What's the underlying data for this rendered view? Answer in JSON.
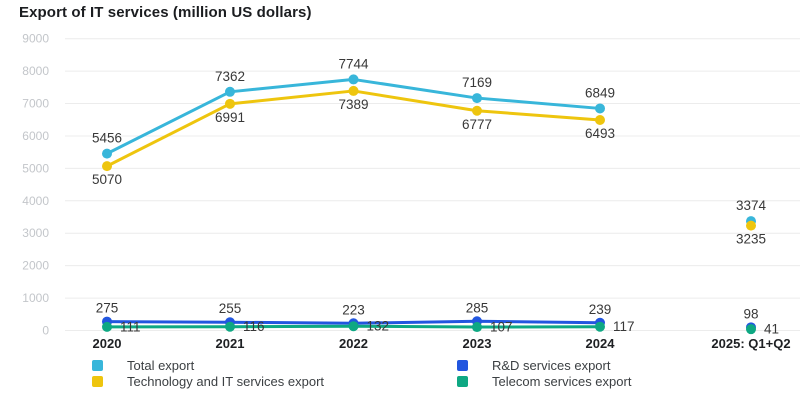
{
  "title": "Export of IT services (million US dollars)",
  "chart_data": {
    "type": "line",
    "title": "Export of IT services (million US dollars)",
    "categories": [
      "2020",
      "2021",
      "2022",
      "2023",
      "2024",
      "2025: Q1+Q2"
    ],
    "series": [
      {
        "name": "Total export",
        "color": "#38b6da",
        "values": [
          5456,
          7362,
          7744,
          7169,
          6849,
          3374
        ],
        "label_position": "above"
      },
      {
        "name": "Technology and IT services export",
        "color": "#eec50e",
        "values": [
          5070,
          6991,
          7389,
          6777,
          6493,
          3235
        ],
        "label_position": "below"
      },
      {
        "name": "R&D services export",
        "color": "#2256df",
        "values": [
          275,
          255,
          223,
          285,
          239,
          98
        ],
        "label_position": "above"
      },
      {
        "name": "Telecom services export",
        "color": "#0ea883",
        "values": [
          111,
          116,
          132,
          107,
          117,
          41
        ],
        "label_position": "right"
      }
    ],
    "y_ticks": [
      9000,
      8000,
      7000,
      6000,
      5000,
      4000,
      3000,
      2000,
      1000,
      0
    ],
    "ylim": [
      0,
      9000
    ],
    "grid": "horizontal-only",
    "legend_position": "bottom-two-columns",
    "gap_before_last_point": true
  }
}
